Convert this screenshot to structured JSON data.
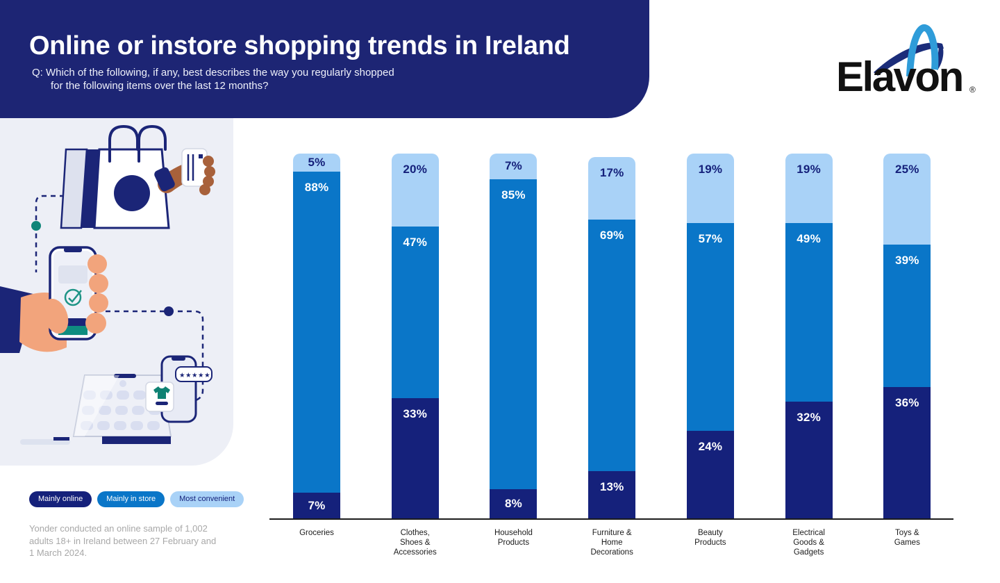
{
  "header": {
    "title": "Online or instore shopping trends in Ireland",
    "subtitle_lines": [
      "Q: Which of the following, if any, best describes the way you regularly shopped",
      "for the following items over the last 12 months?"
    ],
    "background_color": "#1d2574"
  },
  "brand": {
    "wordmark": "Elavon",
    "registered_mark": "®",
    "swoosh_light_blue": "#2f9cd9",
    "swoosh_navy": "#1b2d7a"
  },
  "legend": {
    "items": [
      {
        "label": "Mainly online",
        "color": "#15217b",
        "text_color": "#ffffff"
      },
      {
        "label": "Mainly in store",
        "color": "#0a76c8",
        "text_color": "#ffffff"
      },
      {
        "label": "Most convenient",
        "color": "#a9d2f7",
        "text_color": "#15217b"
      }
    ]
  },
  "footnote": {
    "lines": [
      "Yonder conducted an online sample of 1,002",
      "adults 18+ in Ireland between 27 February and",
      "1 March 2024."
    ]
  },
  "illustration": {
    "rating_stars": "★★★★★",
    "panel_background": "#edeff6"
  },
  "colors": {
    "axis": "#1c1c1c",
    "category_label_text": "#1b1b1b",
    "footnote_text": "#a8a8a8"
  },
  "chart_data": {
    "type": "bar",
    "stacked": true,
    "unit": "%",
    "ylim": [
      0,
      100
    ],
    "grid": false,
    "legend_position": "bottom-left",
    "categories": [
      "Groceries",
      "Clothes, Shoes & Accessories",
      "Household Products",
      "Furniture & Home Decorations",
      "Beauty Products",
      "Electrical Goods & Gadgets",
      "Toys & Games"
    ],
    "category_label_lines": [
      [
        "Groceries"
      ],
      [
        "Clothes,",
        "Shoes &",
        "Accessories"
      ],
      [
        "Household",
        "Products"
      ],
      [
        "Furniture &",
        "Home",
        "Decorations"
      ],
      [
        "Beauty",
        "Products"
      ],
      [
        "Electrical",
        "Goods &",
        "Gadgets"
      ],
      [
        "Toys &",
        "Games"
      ]
    ],
    "series": [
      {
        "name": "Mainly online",
        "color": "#15217b",
        "label_color": "#ffffff",
        "values": [
          7,
          33,
          8,
          13,
          24,
          32,
          36
        ]
      },
      {
        "name": "Mainly in store",
        "color": "#0a76c8",
        "label_color": "#ffffff",
        "values": [
          88,
          47,
          85,
          69,
          57,
          49,
          39
        ]
      },
      {
        "name": "Most convenient",
        "color": "#a9d2f7",
        "label_color": "#15217b",
        "values": [
          5,
          20,
          7,
          17,
          19,
          19,
          25
        ]
      }
    ]
  }
}
